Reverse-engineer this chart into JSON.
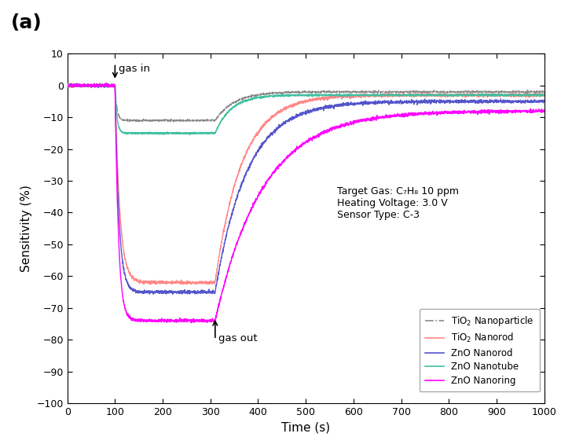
{
  "xlabel": "Time (s)",
  "ylabel": "Sensitivity (%)",
  "xlim": [
    0,
    1000
  ],
  "ylim": [
    -100,
    10
  ],
  "yticks": [
    10,
    0,
    -10,
    -20,
    -30,
    -40,
    -50,
    -60,
    -70,
    -80,
    -90,
    -100
  ],
  "xticks": [
    0,
    100,
    200,
    300,
    400,
    500,
    600,
    700,
    800,
    900,
    1000
  ],
  "gas_in_time": 100,
  "gas_out_time": 310,
  "annotation_gas_in": "gas in",
  "annotation_gas_out": "gas out",
  "annotation_box_text": "Target Gas: C₇H₈ 10 ppm\nHeating Voltage: 3.0 V\nSensor Type: C-3",
  "background_color": "#ffffff",
  "panel_label": "(a)",
  "sensors": [
    {
      "name": "TiO2_nanoparticle",
      "color": "#888888",
      "drop_min": -11,
      "recovery_final": -2,
      "drop_speed": 0.25,
      "recovery_speed": 0.025,
      "linestyle": "-.",
      "linewidth": 1.0,
      "noise": 0.15
    },
    {
      "name": "TiO2_nanorod",
      "color": "#FF8888",
      "drop_min": -62,
      "recovery_final": -3,
      "drop_speed": 0.1,
      "recovery_speed": 0.018,
      "linestyle": "-",
      "linewidth": 1.0,
      "noise": 0.25
    },
    {
      "name": "ZnO_nanorod",
      "color": "#5555CC",
      "drop_min": -65,
      "recovery_final": -5,
      "drop_speed": 0.12,
      "recovery_speed": 0.015,
      "linestyle": "-",
      "linewidth": 1.0,
      "noise": 0.25
    },
    {
      "name": "ZnO_nanotube",
      "color": "#40C0A0",
      "drop_min": -15,
      "recovery_final": -3,
      "drop_speed": 0.25,
      "recovery_speed": 0.03,
      "linestyle": "-",
      "linewidth": 1.0,
      "noise": 0.15
    },
    {
      "name": "ZnO_nanoring",
      "color": "#FF00FF",
      "drop_min": -74,
      "recovery_final": -8,
      "drop_speed": 0.14,
      "recovery_speed": 0.01,
      "linestyle": "-",
      "linewidth": 1.0,
      "noise": 0.25
    }
  ],
  "legend_entries": [
    {
      "label": "TiO₂ Nanoparticle",
      "color": "#888888",
      "linestyle": "-."
    },
    {
      "label": "TiO₂ Nanorod",
      "color": "#FF8888",
      "linestyle": "-"
    },
    {
      "label": "ZnO Nanorod",
      "color": "#5555CC",
      "linestyle": "-"
    },
    {
      "label": "ZnO Nanotube",
      "color": "#40C0A0",
      "linestyle": "-"
    },
    {
      "label": "ZnO Nanoring",
      "color": "#FF00FF",
      "linestyle": "-"
    }
  ]
}
